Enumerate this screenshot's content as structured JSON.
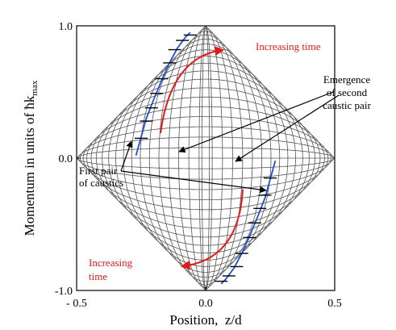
{
  "chart_data": {
    "type": "line",
    "xlabel": "Position,  z/d",
    "ylabel": "Momentum in units of ħk",
    "ylabel_sub": "max",
    "xlim": [
      -0.5,
      0.5
    ],
    "ylim": [
      -1.0,
      1.0
    ],
    "x_ticks": [
      -0.5,
      0.0,
      0.5
    ],
    "x_tick_labels": [
      "- 0.5",
      "0.0",
      "0.5"
    ],
    "y_ticks": [
      1.0,
      0.0,
      -1.0
    ],
    "y_tick_labels": [
      "1.0",
      "0.0",
      "-1.0"
    ],
    "grid": false,
    "trajectory_color": "#555555",
    "caustic_color": "#1f4fd6",
    "arrow_color": "#e01b1b",
    "trajectory_phases": [
      0.08,
      0.16,
      0.24,
      0.32,
      0.4,
      0.48,
      0.56,
      0.64,
      0.72,
      0.8,
      0.88,
      0.96,
      1.04,
      1.12,
      1.2,
      1.28,
      1.36,
      1.44,
      1.52,
      1.6
    ],
    "caustic_upper": {
      "x": [
        -0.27,
        -0.25,
        -0.23,
        -0.2,
        -0.17,
        -0.14,
        -0.11,
        -0.08,
        -0.06
      ],
      "y": [
        0.02,
        0.16,
        0.3,
        0.45,
        0.59,
        0.72,
        0.83,
        0.91,
        0.95
      ]
    },
    "caustic_lower": {
      "x": [
        0.06,
        0.08,
        0.11,
        0.14,
        0.17,
        0.2,
        0.23,
        0.25,
        0.27
      ],
      "y": [
        -0.95,
        -0.91,
        -0.83,
        -0.72,
        -0.59,
        -0.45,
        -0.3,
        -0.16,
        -0.02
      ]
    },
    "tick_marks_upper": [
      {
        "x": -0.25,
        "y": 0.15
      },
      {
        "x": -0.23,
        "y": 0.28
      },
      {
        "x": -0.21,
        "y": 0.38
      },
      {
        "x": -0.19,
        "y": 0.49
      },
      {
        "x": -0.17,
        "y": 0.6
      },
      {
        "x": -0.14,
        "y": 0.72
      },
      {
        "x": -0.12,
        "y": 0.82
      },
      {
        "x": -0.09,
        "y": 0.89
      },
      {
        "x": -0.06,
        "y": 0.93
      }
    ],
    "tick_marks_lower": [
      {
        "x": 0.06,
        "y": -0.93
      },
      {
        "x": 0.09,
        "y": -0.89
      },
      {
        "x": 0.12,
        "y": -0.82
      },
      {
        "x": 0.14,
        "y": -0.72
      },
      {
        "x": 0.17,
        "y": -0.6
      },
      {
        "x": 0.19,
        "y": -0.49
      },
      {
        "x": 0.21,
        "y": -0.38
      },
      {
        "x": 0.23,
        "y": -0.28
      },
      {
        "x": 0.25,
        "y": -0.15
      }
    ],
    "annotations": {
      "time_upper": "Increasing time",
      "time_lower_line1": "Increasing",
      "time_lower_line2": "time",
      "first_pair_line1": "First pair",
      "first_pair_line2": "of caustics",
      "emergence_line1": "Emergence",
      "emergence_line2": "of second",
      "emergence_line3": "caustic pair"
    }
  }
}
